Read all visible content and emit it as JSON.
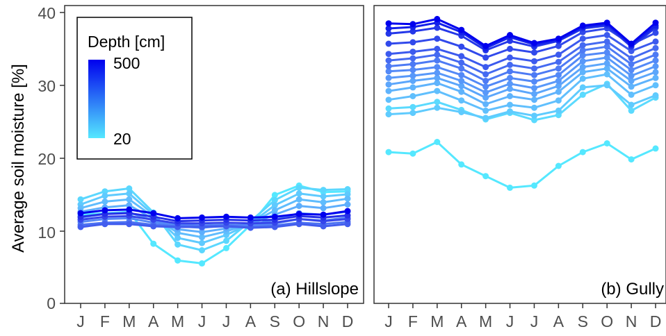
{
  "chart_data": [
    {
      "type": "line",
      "panel_label": "(a) Hillslope",
      "ylabel": "Average soil moisture [%]",
      "xlabel": "",
      "ylim": [
        0,
        40
      ],
      "yticks": [
        "0",
        "10",
        "20",
        "30",
        "40"
      ],
      "categories": [
        "J",
        "F",
        "M",
        "A",
        "M",
        "J",
        "J",
        "A",
        "S",
        "O",
        "N",
        "D"
      ],
      "grid": false,
      "legend": {
        "title": "Depth [cm]",
        "placement": "top-left",
        "max_label": "500",
        "min_label": "20",
        "gradient": [
          "#55e8ff",
          "#0000ee"
        ]
      },
      "series": [
        {
          "depth": 20,
          "color": "#55e8ff",
          "values": [
            12.2,
            12.4,
            12.6,
            8.2,
            5.9,
            5.5,
            7.6,
            10.8,
            14.9,
            16.2,
            15.3,
            15.4
          ]
        },
        {
          "depth": 40,
          "color": "#5bd7fe",
          "values": [
            14.3,
            15.4,
            15.8,
            12.5,
            8.1,
            7.3,
            8.6,
            11.3,
            14.2,
            15.9,
            15.6,
            15.7
          ]
        },
        {
          "depth": 60,
          "color": "#5fcafe",
          "values": [
            13.6,
            14.8,
            15.1,
            12.2,
            9.0,
            8.3,
            9.4,
            11.0,
            13.5,
            15.1,
            14.7,
            15.0
          ]
        },
        {
          "depth": 80,
          "color": "#60bcfd",
          "values": [
            13.1,
            14.0,
            14.3,
            11.9,
            9.7,
            9.1,
            9.9,
            11.0,
            12.8,
            14.3,
            13.9,
            14.4
          ]
        },
        {
          "depth": 100,
          "color": "#5eaefc",
          "values": [
            12.6,
            13.2,
            13.5,
            11.6,
            10.2,
            9.8,
            10.3,
            10.9,
            12.2,
            13.4,
            13.1,
            13.6
          ]
        },
        {
          "depth": 150,
          "color": "#5b9cfa",
          "values": [
            11.8,
            12.3,
            12.5,
            11.4,
            10.6,
            10.4,
            10.7,
            10.8,
            11.5,
            12.4,
            12.2,
            12.6
          ]
        },
        {
          "depth": 200,
          "color": "#5487f6",
          "values": [
            11.2,
            11.6,
            11.7,
            11.1,
            10.8,
            10.7,
            10.8,
            10.7,
            11.0,
            11.6,
            11.4,
            11.8
          ]
        },
        {
          "depth": 250,
          "color": "#4c72f2",
          "values": [
            10.8,
            11.1,
            11.2,
            10.8,
            10.6,
            10.6,
            10.7,
            10.5,
            10.7,
            11.1,
            10.9,
            11.2
          ]
        },
        {
          "depth": 300,
          "color": "#425dee",
          "values": [
            10.5,
            10.9,
            10.9,
            10.6,
            10.5,
            10.5,
            10.6,
            10.4,
            10.5,
            10.9,
            10.6,
            10.9
          ]
        },
        {
          "depth": 350,
          "color": "#3545eb",
          "values": [
            11.5,
            11.9,
            12.0,
            11.5,
            11.0,
            11.0,
            11.1,
            11.0,
            11.1,
            11.6,
            11.3,
            11.6
          ]
        },
        {
          "depth": 400,
          "color": "#2530e8",
          "values": [
            11.9,
            12.3,
            12.4,
            11.9,
            11.3,
            11.4,
            11.5,
            11.4,
            11.5,
            12.0,
            11.8,
            12.1
          ]
        },
        {
          "depth": 500,
          "color": "#0000ee",
          "values": [
            12.4,
            12.8,
            12.9,
            12.4,
            11.7,
            11.8,
            11.9,
            11.8,
            11.9,
            12.3,
            12.2,
            12.7
          ]
        }
      ]
    },
    {
      "type": "line",
      "panel_label": "(b) Gully",
      "ylabel": "",
      "xlabel": "",
      "ylim": [
        0,
        40
      ],
      "categories": [
        "J",
        "F",
        "M",
        "A",
        "M",
        "J",
        "J",
        "A",
        "S",
        "O",
        "N",
        "D"
      ],
      "grid": false,
      "series": [
        {
          "depth": 20,
          "color": "#55e8ff",
          "values": [
            20.8,
            20.6,
            22.2,
            19.1,
            17.5,
            15.9,
            16.2,
            18.9,
            20.8,
            22.0,
            19.8,
            21.3
          ]
        },
        {
          "depth": 30,
          "color": "#5bdafe",
          "values": [
            26.8,
            27.0,
            27.7,
            26.6,
            25.3,
            26.2,
            25.2,
            25.9,
            28.7,
            30.2,
            26.5,
            28.3
          ]
        },
        {
          "depth": 40,
          "color": "#5fcbfe",
          "values": [
            26.0,
            26.2,
            26.9,
            26.3,
            25.5,
            26.4,
            25.8,
            26.5,
            29.7,
            30.0,
            27.3,
            28.6
          ]
        },
        {
          "depth": 50,
          "color": "#60bffd",
          "values": [
            28.0,
            28.5,
            29.2,
            27.9,
            26.5,
            27.3,
            26.9,
            27.9,
            30.9,
            31.5,
            28.7,
            30.0
          ]
        },
        {
          "depth": 60,
          "color": "#5fb3fc",
          "values": [
            29.2,
            29.7,
            30.3,
            29.1,
            27.4,
            28.5,
            28.0,
            29.1,
            31.8,
            32.3,
            29.8,
            31.0
          ]
        },
        {
          "depth": 80,
          "color": "#5ca6fb",
          "values": [
            30.1,
            30.6,
            31.0,
            29.9,
            28.3,
            29.5,
            28.8,
            29.9,
            32.5,
            33.0,
            30.6,
            31.8
          ]
        },
        {
          "depth": 100,
          "color": "#5898f9",
          "values": [
            31.0,
            31.3,
            31.7,
            30.6,
            29.0,
            30.2,
            29.6,
            30.6,
            33.3,
            33.8,
            31.3,
            32.6
          ]
        },
        {
          "depth": 120,
          "color": "#5389f7",
          "values": [
            31.9,
            32.1,
            32.5,
            31.4,
            29.8,
            31.0,
            30.5,
            31.4,
            34.1,
            34.5,
            32.1,
            33.4
          ]
        },
        {
          "depth": 150,
          "color": "#4d7af4",
          "values": [
            32.6,
            32.9,
            33.4,
            32.3,
            30.6,
            31.9,
            31.4,
            32.3,
            34.8,
            35.3,
            32.9,
            34.2
          ]
        },
        {
          "depth": 200,
          "color": "#456af1",
          "values": [
            33.4,
            33.7,
            34.2,
            33.1,
            31.5,
            32.8,
            32.3,
            33.2,
            35.5,
            36.0,
            33.7,
            35.1
          ]
        },
        {
          "depth": 250,
          "color": "#3c5aee",
          "values": [
            34.3,
            34.6,
            35.0,
            34.0,
            32.5,
            33.8,
            33.3,
            34.2,
            36.4,
            36.9,
            34.7,
            36.0
          ]
        },
        {
          "depth": 300,
          "color": "#3149eb",
          "values": [
            35.7,
            35.9,
            36.4,
            35.3,
            33.8,
            35.0,
            34.5,
            35.4,
            37.3,
            37.8,
            35.6,
            37.2
          ]
        },
        {
          "depth": 350,
          "color": "#2437e9",
          "values": [
            37.1,
            37.4,
            37.9,
            36.8,
            34.8,
            36.1,
            35.3,
            36.1,
            37.8,
            38.2,
            35.3,
            37.9
          ]
        },
        {
          "depth": 400,
          "color": "#1320ea",
          "values": [
            37.8,
            38.0,
            38.6,
            37.3,
            35.1,
            36.6,
            35.6,
            36.2,
            38.0,
            38.4,
            35.5,
            38.2
          ]
        },
        {
          "depth": 500,
          "color": "#0000ee",
          "values": [
            38.5,
            38.4,
            39.1,
            37.6,
            35.4,
            36.9,
            35.8,
            36.4,
            38.2,
            38.6,
            35.7,
            38.6
          ]
        }
      ]
    }
  ]
}
